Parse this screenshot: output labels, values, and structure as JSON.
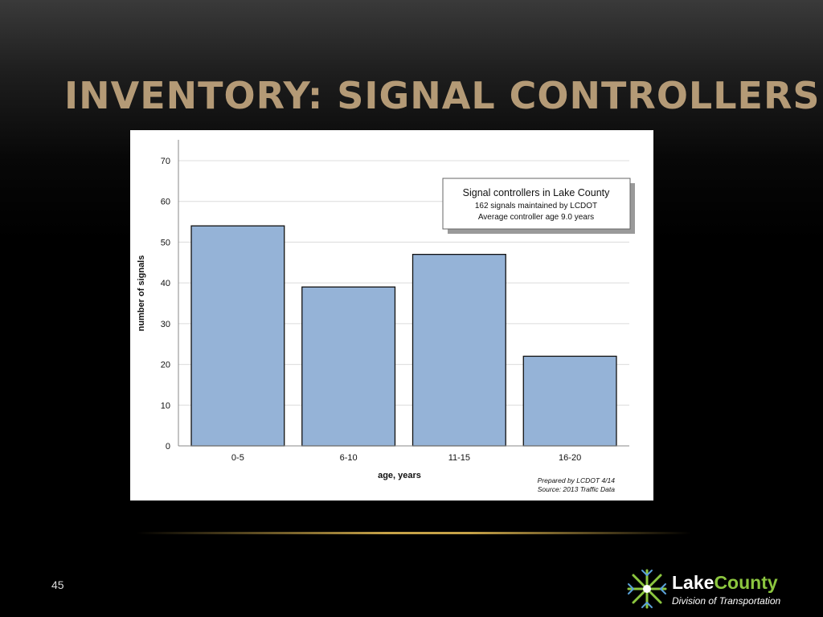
{
  "slide": {
    "title": "INVENTORY: SIGNAL CONTROLLERS",
    "page_number": "45"
  },
  "logo": {
    "name_part1": "Lake",
    "name_part2": "County",
    "subtitle": "Division of Transportation",
    "colors": {
      "part1": "#ffffff",
      "part2": "#8cc63f"
    }
  },
  "chart_data": {
    "type": "bar",
    "categories": [
      "0-5",
      "6-10",
      "11-15",
      "16-20"
    ],
    "values": [
      54,
      39,
      47,
      22
    ],
    "xlabel": "age, years",
    "ylabel": "number of signals",
    "ylim": [
      0,
      70
    ],
    "yticks": [
      0,
      10,
      20,
      30,
      40,
      50,
      60,
      70
    ],
    "grid": true,
    "bar_color": "#95b3d7",
    "annotation": {
      "title": "Signal controllers in Lake County",
      "line1": "162 signals maintained by LCDOT",
      "line2": "Average controller age 9.0 years",
      "placement": "top-right"
    },
    "credit": {
      "line1": "Prepared by LCDOT 4/14",
      "line2": "Source:  2013 Traffic Data"
    }
  }
}
